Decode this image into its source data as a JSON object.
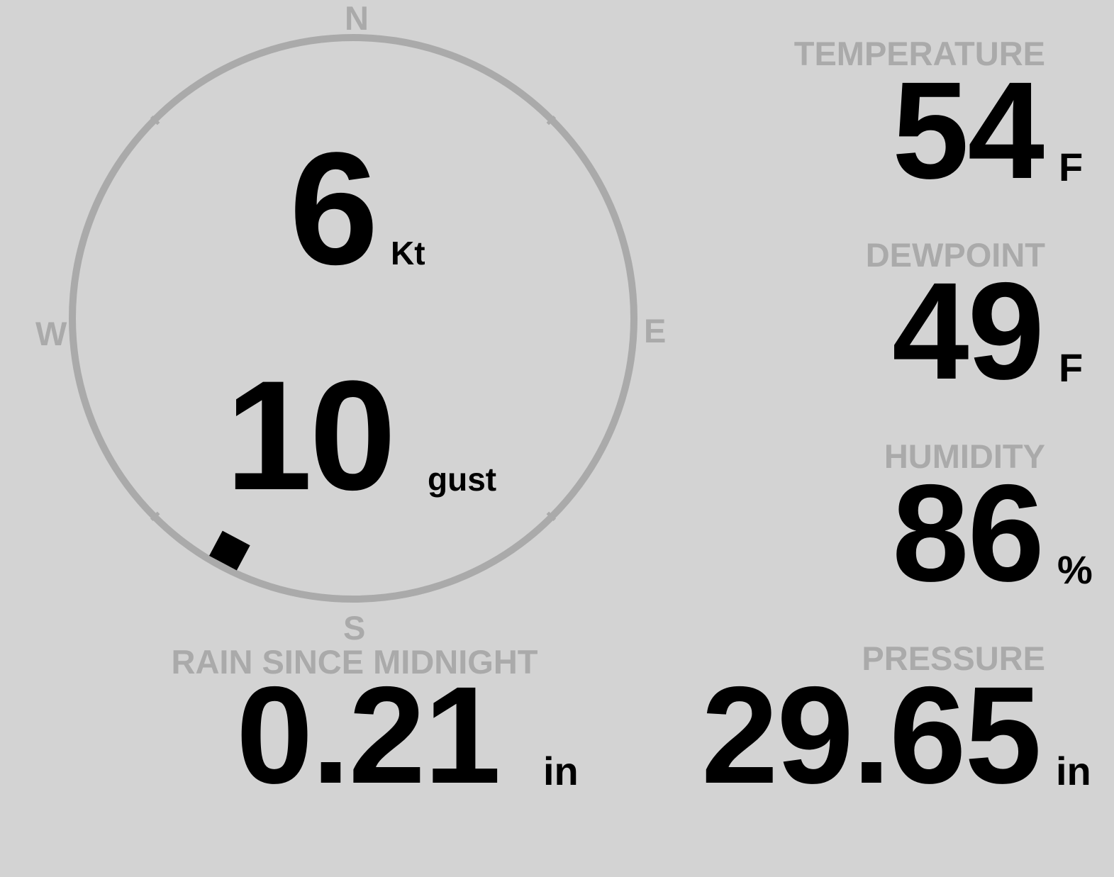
{
  "wind": {
    "speed": "6",
    "speed_unit": "Kt",
    "gust": "10",
    "gust_unit": "gust",
    "direction_deg": 208,
    "compass": {
      "n": "N",
      "e": "E",
      "s": "S",
      "w": "W"
    },
    "colors": {
      "ring": "#aaaaaa",
      "marker": "#000000"
    }
  },
  "temperature": {
    "label": "TEMPERATURE",
    "value": "54",
    "unit": "F"
  },
  "dewpoint": {
    "label": "DEWPOINT",
    "value": "49",
    "unit": "F"
  },
  "humidity": {
    "label": "HUMIDITY",
    "value": "86",
    "unit": "%"
  },
  "pressure": {
    "label": "PRESSURE",
    "value": "29.65",
    "unit": "in"
  },
  "rain": {
    "label": "RAIN SINCE MIDNIGHT",
    "value": "0.21",
    "unit": "in"
  },
  "colors": {
    "background": "#d3d3d3",
    "label": "#aaaaaa",
    "value": "#000000"
  }
}
